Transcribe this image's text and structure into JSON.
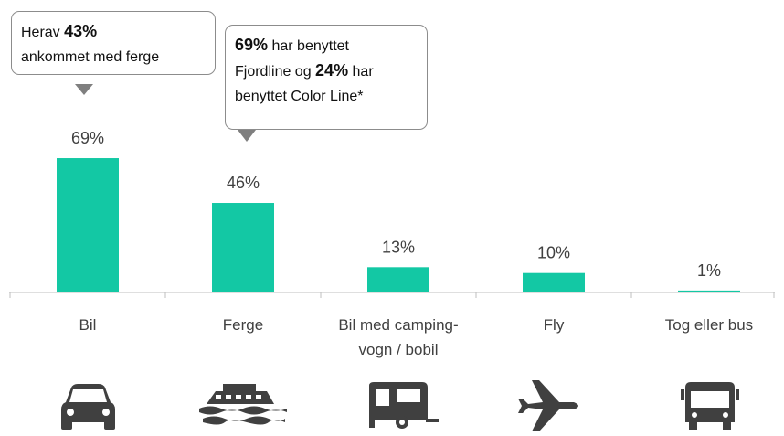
{
  "chart_data": {
    "type": "bar",
    "categories": [
      "Bil",
      "Ferge",
      "Bil med camping-\nvogn / bobil",
      "Fly",
      "Tog eller bus"
    ],
    "values": [
      69,
      46,
      13,
      10,
      1
    ],
    "value_labels": [
      "69%",
      "46%",
      "13%",
      "10%",
      "1%"
    ],
    "color": "#13c8a4",
    "annotations": [
      {
        "lines": [
          [
            {
              "text": "Herav "
            },
            {
              "text": "43%",
              "bold": true
            }
          ],
          [
            {
              "text": "ankommet med ferge"
            }
          ]
        ]
      },
      {
        "lines": [
          [
            {
              "text": "69%",
              "bold": true
            },
            {
              "text": " har benyttet"
            }
          ],
          [
            {
              "text": "Fjordline og "
            },
            {
              "text": "24%",
              "bold": true
            },
            {
              "text": " har"
            }
          ],
          [
            {
              "text": "benyttet Color Line*"
            }
          ]
        ]
      }
    ]
  }
}
